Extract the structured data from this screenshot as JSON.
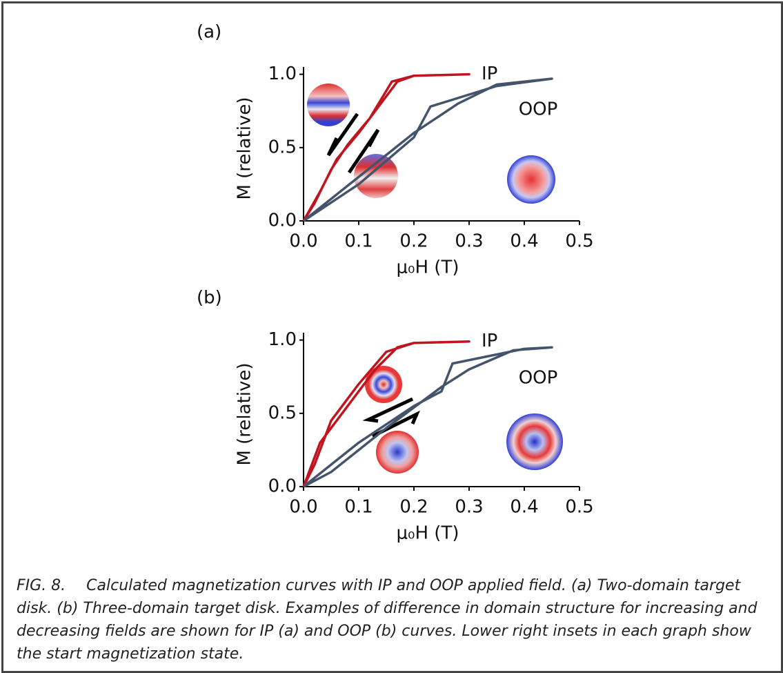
{
  "chart_data": [
    {
      "type": "line",
      "panel_label": "(a)",
      "x_label": "μ₀H (T)",
      "y_label": "M (relative)",
      "xlim": [
        0,
        0.5
      ],
      "ylim": [
        0,
        1.05
      ],
      "xticks": [
        {
          "value": 0,
          "label": "0.0"
        },
        {
          "value": 0.1,
          "label": "0.1"
        },
        {
          "value": 0.2,
          "label": "0.2"
        },
        {
          "value": 0.3,
          "label": "0.3"
        },
        {
          "value": 0.4,
          "label": "0.4"
        },
        {
          "value": 0.5,
          "label": "0.5"
        }
      ],
      "yticks": [
        {
          "value": 0,
          "label": "0.0"
        },
        {
          "value": 0.5,
          "label": "0.5"
        },
        {
          "value": 1,
          "label": "1.0"
        }
      ],
      "series": [
        {
          "name": "IP",
          "color": "#c0141e",
          "x": [
            0,
            0.03,
            0.06,
            0.1,
            0.13,
            0.17,
            0.2,
            0.3,
            0.2,
            0.16,
            0.12,
            0.08,
            0.05,
            0.02,
            0
          ],
          "values": [
            0,
            0.2,
            0.42,
            0.6,
            0.75,
            0.95,
            0.99,
            1.0,
            0.99,
            0.95,
            0.7,
            0.52,
            0.35,
            0.12,
            0
          ]
        },
        {
          "name": "OOP",
          "color": "#44546a",
          "x": [
            0,
            0.1,
            0.2,
            0.23,
            0.35,
            0.45,
            0.35,
            0.28,
            0.2,
            0.1,
            0
          ],
          "values": [
            0,
            0.25,
            0.57,
            0.78,
            0.92,
            0.97,
            0.93,
            0.8,
            0.6,
            0.3,
            0
          ]
        }
      ]
    },
    {
      "type": "line",
      "panel_label": "(b)",
      "x_label": "μ₀H (T)",
      "y_label": "M (relative)",
      "xlim": [
        0,
        0.5
      ],
      "ylim": [
        0,
        1.05
      ],
      "xticks": [
        {
          "value": 0,
          "label": "0.0"
        },
        {
          "value": 0.1,
          "label": "0.1"
        },
        {
          "value": 0.2,
          "label": "0.2"
        },
        {
          "value": 0.3,
          "label": "0.3"
        },
        {
          "value": 0.4,
          "label": "0.4"
        },
        {
          "value": 0.5,
          "label": "0.5"
        }
      ],
      "yticks": [
        {
          "value": 0,
          "label": "0.0"
        },
        {
          "value": 0.5,
          "label": "0.5"
        },
        {
          "value": 1,
          "label": "1.0"
        }
      ],
      "series": [
        {
          "name": "IP",
          "color": "#c0141e",
          "x": [
            0,
            0.03,
            0.08,
            0.13,
            0.17,
            0.2,
            0.3,
            0.2,
            0.15,
            0.1,
            0.05,
            0.02,
            0
          ],
          "values": [
            0,
            0.3,
            0.55,
            0.8,
            0.95,
            0.98,
            0.99,
            0.98,
            0.92,
            0.7,
            0.45,
            0.15,
            0
          ]
        },
        {
          "name": "OOP",
          "color": "#44546a",
          "x": [
            0,
            0.1,
            0.2,
            0.25,
            0.27,
            0.4,
            0.45,
            0.38,
            0.3,
            0.25,
            0.15,
            0.05,
            0
          ],
          "values": [
            0,
            0.3,
            0.55,
            0.65,
            0.84,
            0.94,
            0.95,
            0.93,
            0.8,
            0.68,
            0.4,
            0.1,
            0
          ]
        }
      ]
    }
  ],
  "caption": {
    "label": "FIG. 8.",
    "text": "Calculated magnetization curves with IP and OOP applied field. (a) Two-domain target disk. (b) Three-domain target disk. Examples of difference in domain structure for increasing and decreasing fields are shown for IP (a) and OOP (b) curves. Lower right insets in each graph show the start magnetization state."
  }
}
